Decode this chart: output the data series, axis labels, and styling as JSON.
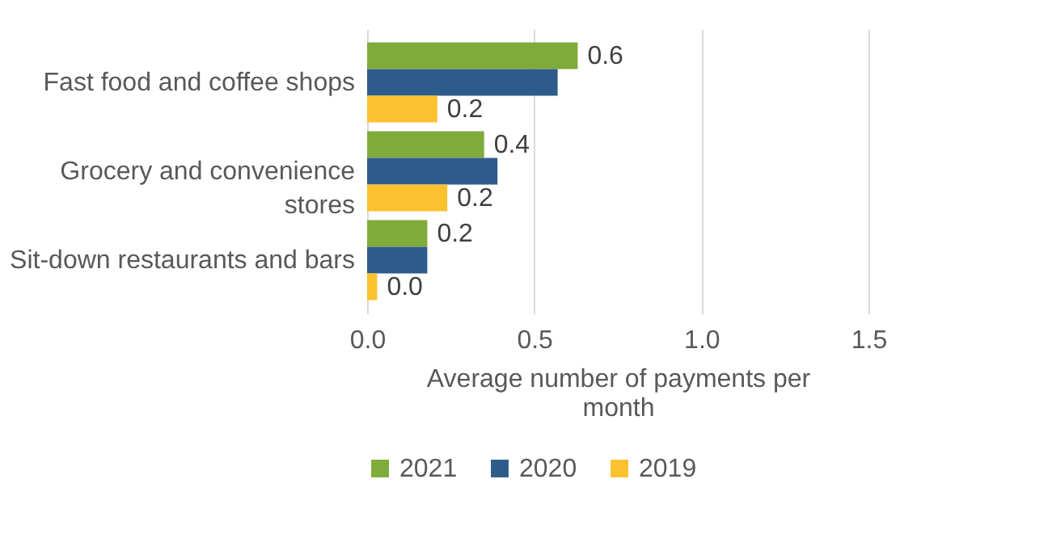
{
  "chart_data": {
    "type": "bar",
    "orientation": "horizontal",
    "categories": [
      "Fast food and coffee shops",
      "Grocery and convenience stores",
      "Sit-down restaurants and bars"
    ],
    "series": [
      {
        "name": "2021",
        "color": "#7eab3a",
        "values": [
          0.63,
          0.35,
          0.18
        ],
        "value_labels": [
          "0.6",
          "0.4",
          "0.2"
        ]
      },
      {
        "name": "2020",
        "color": "#2e5c8a",
        "values": [
          0.57,
          0.39,
          0.18
        ],
        "value_labels": [
          null,
          null,
          null
        ]
      },
      {
        "name": "2019",
        "color": "#fcc12e",
        "values": [
          0.21,
          0.24,
          0.03
        ],
        "value_labels": [
          "0.2",
          "0.2",
          "0.0"
        ]
      }
    ],
    "xlabel": "Average number  of payments per month",
    "xlim": [
      0,
      1.5
    ],
    "xticks": [
      {
        "value": 0,
        "label": "0.0"
      },
      {
        "value": 0.5,
        "label": "0.5"
      },
      {
        "value": 1,
        "label": "1.0"
      },
      {
        "value": 1.5,
        "label": "1.5"
      }
    ],
    "grid": "x",
    "legend": "bottom"
  }
}
